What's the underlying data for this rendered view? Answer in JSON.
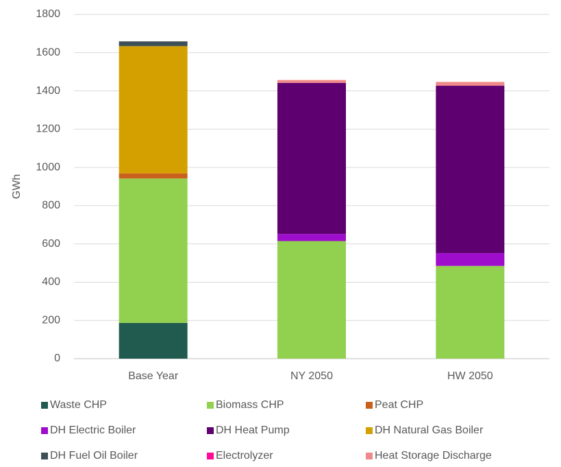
{
  "chart_data": {
    "type": "stacked_bar",
    "ylabel": "GWh",
    "categories": [
      "Base Year",
      "NY 2050",
      "HW 2050"
    ],
    "series": [
      {
        "name": "Waste CHP",
        "color": "#215a4f",
        "values": [
          187,
          0,
          0
        ]
      },
      {
        "name": "Biomass CHP",
        "color": "#92d050",
        "values": [
          755,
          615,
          485
        ]
      },
      {
        "name": "Peat CHP",
        "color": "#c9601c",
        "values": [
          27,
          0,
          0
        ]
      },
      {
        "name": "DH Electric Boiler",
        "color": "#9e0ccc",
        "values": [
          0,
          37,
          67
        ]
      },
      {
        "name": "DH Heat Pump",
        "color": "#5e0070",
        "values": [
          0,
          790,
          875
        ]
      },
      {
        "name": "DH Natural Gas Boiler",
        "color": "#d4a000",
        "values": [
          665,
          0,
          0
        ]
      },
      {
        "name": "DH Fuel Oil Boiler",
        "color": "#3d5058",
        "values": [
          25,
          0,
          0
        ]
      },
      {
        "name": "Electrolyzer",
        "color": "#ff0a9a",
        "values": [
          0,
          0,
          0
        ]
      },
      {
        "name": "Heat Storage Discharge",
        "color": "#f08a8a",
        "values": [
          0,
          15,
          20
        ]
      }
    ],
    "ylim": [
      0,
      1800
    ],
    "yticks": [
      0,
      200,
      400,
      600,
      800,
      1000,
      1200,
      1400,
      1600,
      1800
    ],
    "grid": true
  }
}
